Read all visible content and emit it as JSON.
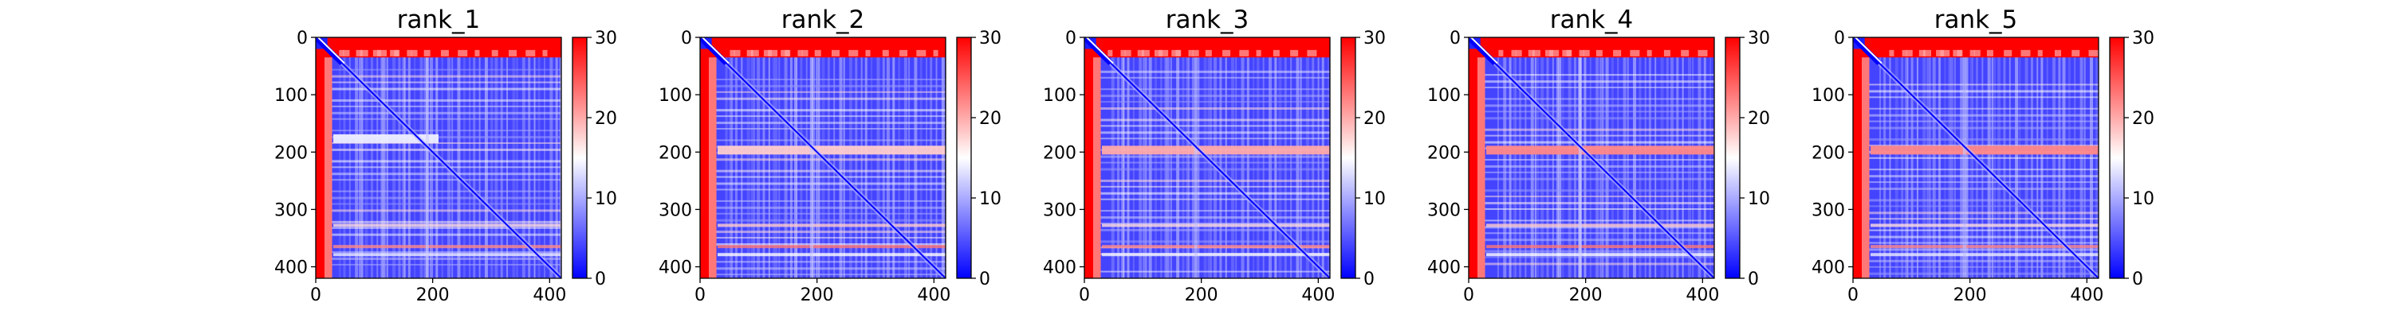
{
  "colors": {
    "low": "#0000ff",
    "mid": "#ffffff",
    "high": "#ff0000"
  },
  "chart_data": [
    {
      "type": "heatmap",
      "title": "rank_1",
      "colormap": "bwr",
      "xlim": [
        0,
        420
      ],
      "ylim": [
        420,
        0
      ],
      "clim": [
        0,
        30
      ],
      "x_ticks": [
        0,
        200,
        400
      ],
      "y_ticks": [
        0,
        100,
        200,
        300,
        400
      ],
      "colorbar_ticks": [
        0,
        10,
        20,
        30
      ],
      "band_y": 175,
      "band_value": 14,
      "band_extent": 210
    },
    {
      "type": "heatmap",
      "title": "rank_2",
      "colormap": "bwr",
      "xlim": [
        0,
        420
      ],
      "ylim": [
        420,
        0
      ],
      "clim": [
        0,
        30
      ],
      "x_ticks": [
        0,
        200,
        400
      ],
      "y_ticks": [
        0,
        100,
        200,
        300,
        400
      ],
      "colorbar_ticks": [
        0,
        10,
        20,
        30
      ],
      "band_y": 195,
      "band_value": 18,
      "band_extent": 420
    },
    {
      "type": "heatmap",
      "title": "rank_3",
      "colormap": "bwr",
      "xlim": [
        0,
        420
      ],
      "ylim": [
        420,
        0
      ],
      "clim": [
        0,
        30
      ],
      "x_ticks": [
        0,
        200,
        400
      ],
      "y_ticks": [
        0,
        100,
        200,
        300,
        400
      ],
      "colorbar_ticks": [
        0,
        10,
        20,
        30
      ],
      "band_y": 195,
      "band_value": 20,
      "band_extent": 420
    },
    {
      "type": "heatmap",
      "title": "rank_4",
      "colormap": "bwr",
      "xlim": [
        0,
        420
      ],
      "ylim": [
        420,
        0
      ],
      "clim": [
        0,
        30
      ],
      "x_ticks": [
        0,
        200,
        400
      ],
      "y_ticks": [
        0,
        100,
        200,
        300,
        400
      ],
      "colorbar_ticks": [
        0,
        10,
        20,
        30
      ],
      "band_y": 195,
      "band_value": 22,
      "band_extent": 420
    },
    {
      "type": "heatmap",
      "title": "rank_5",
      "colormap": "bwr",
      "xlim": [
        0,
        420
      ],
      "ylim": [
        420,
        0
      ],
      "clim": [
        0,
        30
      ],
      "x_ticks": [
        0,
        200,
        400
      ],
      "y_ticks": [
        0,
        100,
        200,
        300,
        400
      ],
      "colorbar_ticks": [
        0,
        10,
        20,
        30
      ],
      "band_y": 195,
      "band_value": 22,
      "band_extent": 420
    }
  ]
}
